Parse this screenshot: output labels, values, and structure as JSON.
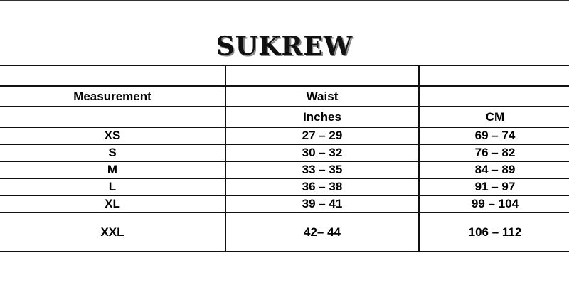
{
  "brand": "SUKREW",
  "header": {
    "measurement": "Measurement",
    "waist": "Waist",
    "inches": "Inches",
    "cm": "CM"
  },
  "rows": [
    {
      "size": "XS",
      "inches": "27 – 29",
      "cm": "69 – 74"
    },
    {
      "size": "S",
      "inches": "30 – 32",
      "cm": "76 – 82"
    },
    {
      "size": "M",
      "inches": "33 – 35",
      "cm": "84 – 89"
    },
    {
      "size": "L",
      "inches": "36 – 38",
      "cm": "91 – 97"
    },
    {
      "size": "XL",
      "inches": "39 – 41",
      "cm": "99 – 104"
    },
    {
      "size": "XXL",
      "inches": "42– 44",
      "cm": "106 – 112"
    }
  ]
}
